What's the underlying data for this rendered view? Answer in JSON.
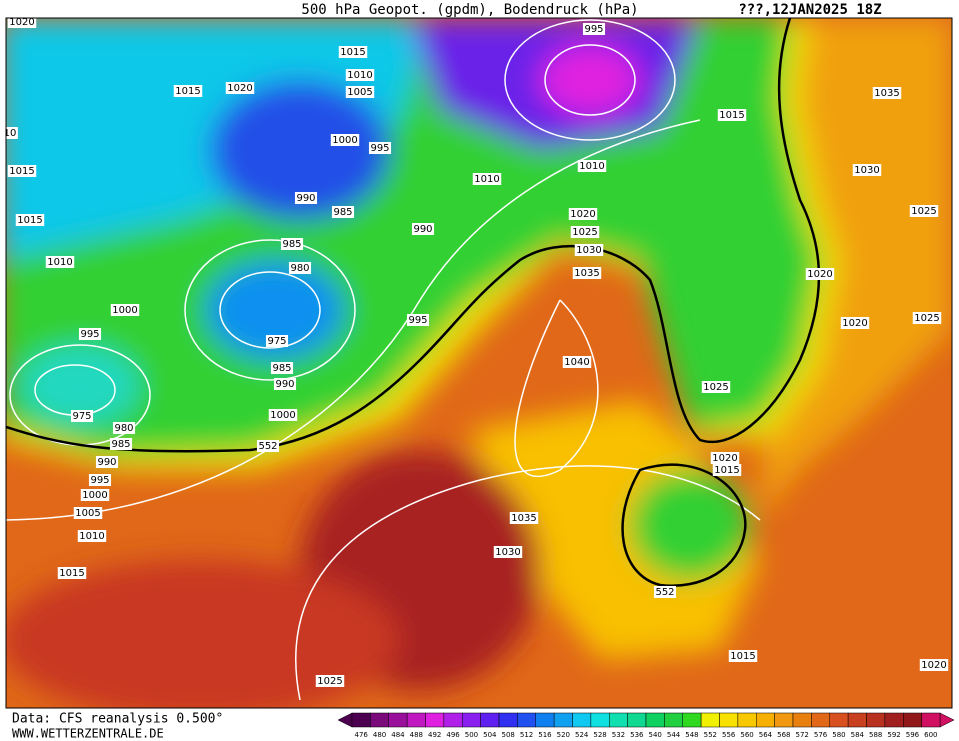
{
  "header": {
    "title": "500 hPa Geopot. (gpdm), Bodendruck (hPa)",
    "date": "???,12JAN2025 18Z"
  },
  "map": {
    "isobar_labels": [
      "1020",
      "1015",
      "1010",
      "1005",
      "995",
      "1015",
      "1020",
      "10",
      "1000",
      "995",
      "1015",
      "1015",
      "1010",
      "1010",
      "1035",
      "1030",
      "1025",
      "990",
      "985",
      "1020",
      "990",
      "1025",
      "1030",
      "985",
      "1015",
      "1010",
      "980",
      "1035",
      "1020",
      "1000",
      "995",
      "1020",
      "1025",
      "995",
      "975",
      "1040",
      "985",
      "990",
      "1025",
      "975",
      "980",
      "1000",
      "985",
      "552",
      "990",
      "1020",
      "1015",
      "995",
      "1000",
      "1005",
      "1035",
      "1010",
      "1030",
      "1015",
      "552",
      "1015",
      "1020",
      "1025"
    ]
  },
  "colorbar": {
    "entries": [
      {
        "value": 476,
        "color": "#4b0050"
      },
      {
        "value": 480,
        "color": "#7a0a7a"
      },
      {
        "value": 484,
        "color": "#9a109a"
      },
      {
        "value": 488,
        "color": "#c018c0"
      },
      {
        "value": 492,
        "color": "#e020e0"
      },
      {
        "value": 496,
        "color": "#b020e8"
      },
      {
        "value": 500,
        "color": "#8a20f0"
      },
      {
        "value": 504,
        "color": "#6020f0"
      },
      {
        "value": 508,
        "color": "#3030f0"
      },
      {
        "value": 512,
        "color": "#2050f0"
      },
      {
        "value": 516,
        "color": "#1080f0"
      },
      {
        "value": 520,
        "color": "#10a0f0"
      },
      {
        "value": 524,
        "color": "#10c8f0"
      },
      {
        "value": 528,
        "color": "#10e0e0"
      },
      {
        "value": 532,
        "color": "#10e0b0"
      },
      {
        "value": 536,
        "color": "#10d890"
      },
      {
        "value": 540,
        "color": "#10d060"
      },
      {
        "value": 544,
        "color": "#20d040"
      },
      {
        "value": 548,
        "color": "#30d820"
      },
      {
        "value": 552,
        "color": "#f0f000"
      },
      {
        "value": 556,
        "color": "#f8e000"
      },
      {
        "value": 560,
        "color": "#f8c800"
      },
      {
        "value": 564,
        "color": "#f8b000"
      },
      {
        "value": 568,
        "color": "#f09810"
      },
      {
        "value": 572,
        "color": "#e88010"
      },
      {
        "value": 576,
        "color": "#e06818"
      },
      {
        "value": 580,
        "color": "#d85020"
      },
      {
        "value": 584,
        "color": "#c84020"
      },
      {
        "value": 588,
        "color": "#b83020"
      },
      {
        "value": 592,
        "color": "#a02020"
      },
      {
        "value": 596,
        "color": "#901818"
      },
      {
        "value": 600,
        "color": "#d01060"
      }
    ]
  },
  "footer": {
    "source": "Data: CFS reanalysis 0.500°",
    "site": "WWW.WETTERZENTRALE.DE"
  }
}
